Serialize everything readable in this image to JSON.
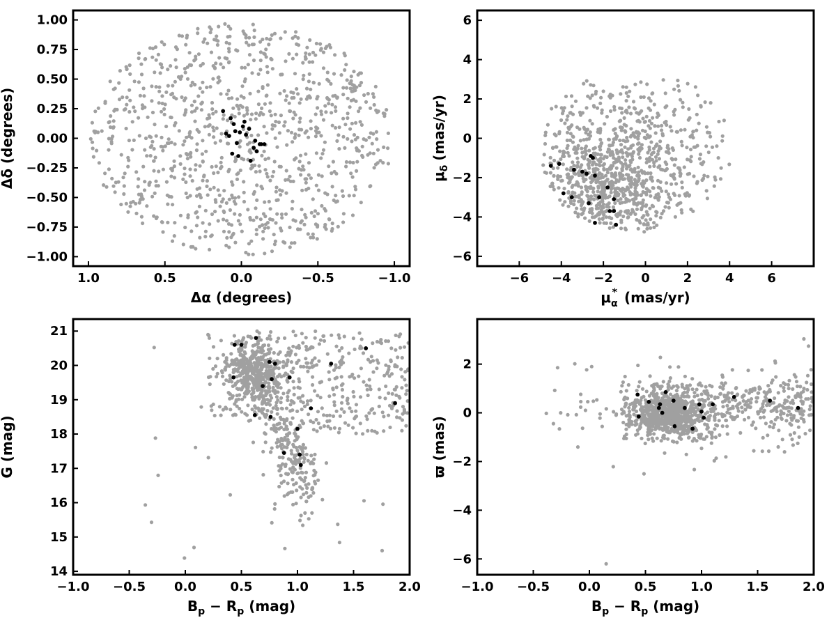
{
  "colors": {
    "field": "#a0a0a0",
    "members": "#000000",
    "frame": "#000000"
  },
  "chart_data": [
    {
      "type": "scatter",
      "xlabel": "Δα (degrees)",
      "ylabel": "Δδ (degrees)",
      "xlim": [
        1.1,
        -1.1
      ],
      "ylim": [
        -1.08,
        1.08
      ],
      "x_inverted": true,
      "xticks": [
        1.0,
        0.5,
        0.0,
        -0.5,
        -1.0
      ],
      "xtick_labels": [
        "1.0",
        "0.5",
        "0.0",
        "−0.5",
        "−1.0"
      ],
      "yticks": [
        -1.0,
        -0.75,
        -0.5,
        -0.25,
        0.0,
        0.25,
        0.5,
        0.75,
        1.0
      ],
      "ytick_labels": [
        "−1.00",
        "−0.75",
        "−0.50",
        "−0.25",
        "0.00",
        "0.25",
        "0.50",
        "0.75",
        "1.00"
      ],
      "field_sample": {
        "count": 1000,
        "distribution": "uniform disk",
        "center": [
          0,
          0
        ],
        "radius": 1.0
      },
      "members": {
        "x": [
          0.12,
          0.07,
          -0.02,
          0.05,
          0.1,
          0.08,
          -0.05,
          -0.09,
          -0.12,
          -0.08,
          -0.1,
          -0.13,
          -0.15,
          -0.06,
          0.03,
          0.01,
          -0.01,
          0.04,
          -0.03,
          0.06,
          0.02
        ],
        "y": [
          0.23,
          0.17,
          0.14,
          0.12,
          0.04,
          0.02,
          0.08,
          -0.02,
          -0.05,
          -0.08,
          -0.11,
          -0.05,
          -0.05,
          -0.19,
          -0.04,
          0.05,
          0.1,
          0.06,
          0.03,
          -0.13,
          -0.15
        ]
      }
    },
    {
      "type": "scatter",
      "xlabel": "μ",
      "xlabel_sub": "α",
      "xlabel_sup": "*",
      "xlabel_units": "(mas/yr)",
      "ylabel": "μ",
      "ylabel_sub": "δ",
      "ylabel_units": "(mas/yr)",
      "xlim": [
        -8,
        8
      ],
      "ylim": [
        -6.5,
        6.5
      ],
      "xticks": [
        -6,
        -4,
        -2,
        0,
        2,
        4,
        6
      ],
      "xtick_labels": [
        "−6",
        "−4",
        "−2",
        "0",
        "2",
        "4",
        "6"
      ],
      "yticks": [
        -6,
        -4,
        -2,
        0,
        2,
        4,
        6
      ],
      "ytick_labels": [
        "−6",
        "−4",
        "−2",
        "0",
        "2",
        "4",
        "6"
      ],
      "field_sample": {
        "count": 1000,
        "distribution": "disk with dense lower-left lobe",
        "center": [
          -0.5,
          -0.9
        ],
        "radius": 4.5
      },
      "members": {
        "x": [
          -4.5,
          -4.1,
          -3.9,
          -3.5,
          -3.4,
          -2.6,
          -2.5,
          -2.8,
          -2.4,
          -2.7,
          -3.0,
          -2.4,
          -1.8,
          -1.5,
          -1.5,
          -1.7,
          -1.4,
          -2.2
        ],
        "y": [
          -1.4,
          -1.3,
          -2.8,
          -3.0,
          -1.6,
          -0.9,
          -1.0,
          -1.8,
          -1.9,
          -3.3,
          -1.7,
          -4.3,
          -2.5,
          -3.1,
          -3.7,
          -3.7,
          -4.4,
          -3.0
        ]
      }
    },
    {
      "type": "scatter",
      "xlabel": "B",
      "xlabel_sub1": "p",
      "xlabel_mid": " − R",
      "xlabel_sub2": "p",
      "xlabel_units": " (mag)",
      "ylabel": "G (mag)",
      "xlim": [
        -1.0,
        2.0
      ],
      "ylim": [
        13.9,
        21.35
      ],
      "xticks": [
        -1.0,
        -0.5,
        0.0,
        0.5,
        1.0,
        1.5,
        2.0
      ],
      "xtick_labels": [
        "−1.0",
        "−0.5",
        "0.0",
        "0.5",
        "1.0",
        "1.5",
        "2.0"
      ],
      "yticks": [
        14,
        15,
        16,
        17,
        18,
        19,
        20,
        21
      ],
      "ytick_labels": [
        "14",
        "15",
        "16",
        "17",
        "18",
        "19",
        "20",
        "21"
      ],
      "field_sample": {
        "count": 1100,
        "distribution": "clump near (0.65, 19.7) with giant branch to (1.0, 17) and red tail"
      },
      "members": {
        "x": [
          0.44,
          0.5,
          0.63,
          0.43,
          0.69,
          0.75,
          0.8,
          0.77,
          0.62,
          0.76,
          0.93,
          1.0,
          1.12,
          1.3,
          0.88,
          1.02,
          1.03,
          1.61,
          1.87
        ],
        "y": [
          20.6,
          20.6,
          20.8,
          19.65,
          19.4,
          20.1,
          20.05,
          19.6,
          18.55,
          18.5,
          19.65,
          18.15,
          18.75,
          20.05,
          17.45,
          17.4,
          17.1,
          20.5,
          18.9
        ]
      }
    },
    {
      "type": "scatter",
      "xlabel": "B",
      "xlabel_sub1": "p",
      "xlabel_mid": " − R",
      "xlabel_sub2": "p",
      "xlabel_units": " (mag)",
      "ylabel": "ϖ (mas)",
      "xlim": [
        -1.0,
        2.0
      ],
      "ylim": [
        -6.65,
        3.85
      ],
      "xticks": [
        -1.0,
        -0.5,
        0.0,
        0.5,
        1.0,
        1.5,
        2.0
      ],
      "xtick_labels": [
        "−1.0",
        "−0.5",
        "0.0",
        "0.5",
        "1.0",
        "1.5",
        "2.0"
      ],
      "yticks": [
        -6,
        -4,
        -2,
        0,
        2
      ],
      "ytick_labels": [
        "−6",
        "−4",
        "−2",
        "0",
        "2"
      ],
      "field_sample": {
        "count": 1100,
        "distribution": "horizontal band centered near 0"
      },
      "members": {
        "x": [
          0.43,
          0.53,
          0.63,
          0.68,
          0.75,
          0.62,
          0.65,
          0.44,
          0.76,
          0.85,
          0.92,
          1.0,
          1.02,
          1.1,
          1.29,
          1.61,
          1.86,
          0.98
        ],
        "y": [
          0.75,
          0.45,
          0.35,
          0.85,
          0.5,
          0.2,
          0.0,
          -0.15,
          -0.55,
          0.2,
          -0.65,
          0.05,
          -0.2,
          0.35,
          0.65,
          0.5,
          0.2,
          0.35
        ]
      }
    }
  ]
}
